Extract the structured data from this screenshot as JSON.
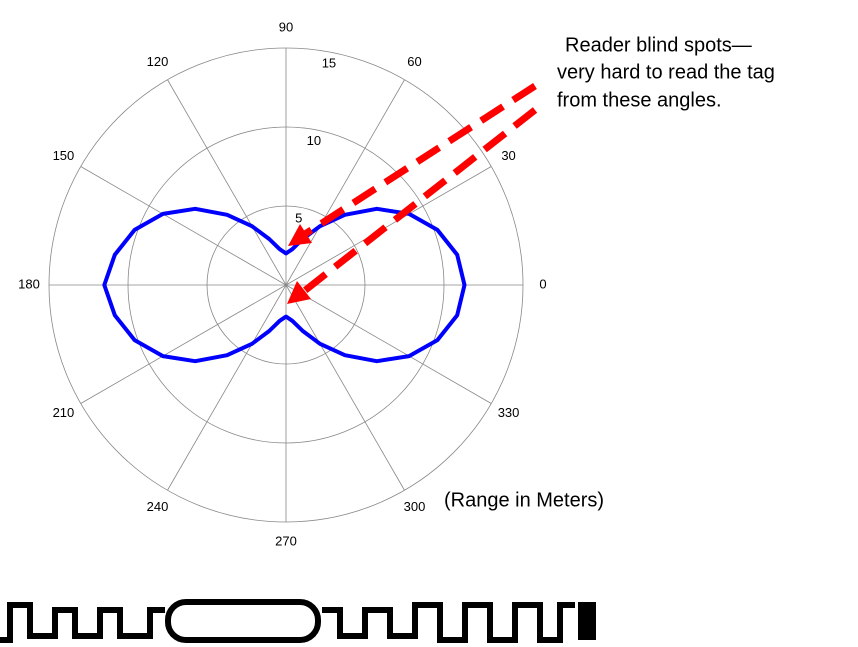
{
  "chart_data": {
    "type": "polar",
    "theta": [
      0,
      10,
      20,
      30,
      40,
      50,
      60,
      70,
      80,
      90,
      100,
      110,
      120,
      130,
      140,
      150,
      160,
      170,
      180,
      190,
      200,
      210,
      220,
      230,
      240,
      250,
      260,
      270,
      280,
      290,
      300,
      310,
      320,
      330,
      340,
      350
    ],
    "series": [
      {
        "color": "#0000ff",
        "values": [
          11.3,
          11.0,
          10.2,
          9.0,
          7.5,
          5.8,
          4.3,
          3.1,
          2.3,
          2.0,
          2.3,
          3.1,
          4.3,
          5.8,
          7.5,
          9.0,
          10.2,
          11.0,
          11.5,
          11.0,
          10.2,
          9.0,
          7.5,
          5.8,
          4.3,
          3.1,
          2.3,
          2.0,
          2.3,
          3.1,
          4.3,
          5.8,
          7.5,
          9.0,
          10.2,
          11.0
        ]
      }
    ],
    "rlim": [
      0,
      15
    ],
    "rticks": [
      5,
      10,
      15
    ],
    "thetaticks": [
      0,
      30,
      60,
      90,
      120,
      150,
      180,
      210,
      240,
      270,
      300,
      330
    ],
    "annotations": [
      "Reader blind spots—",
      "very hard to read the tag",
      "from these angles.",
      "(Range in Meters)"
    ]
  }
}
